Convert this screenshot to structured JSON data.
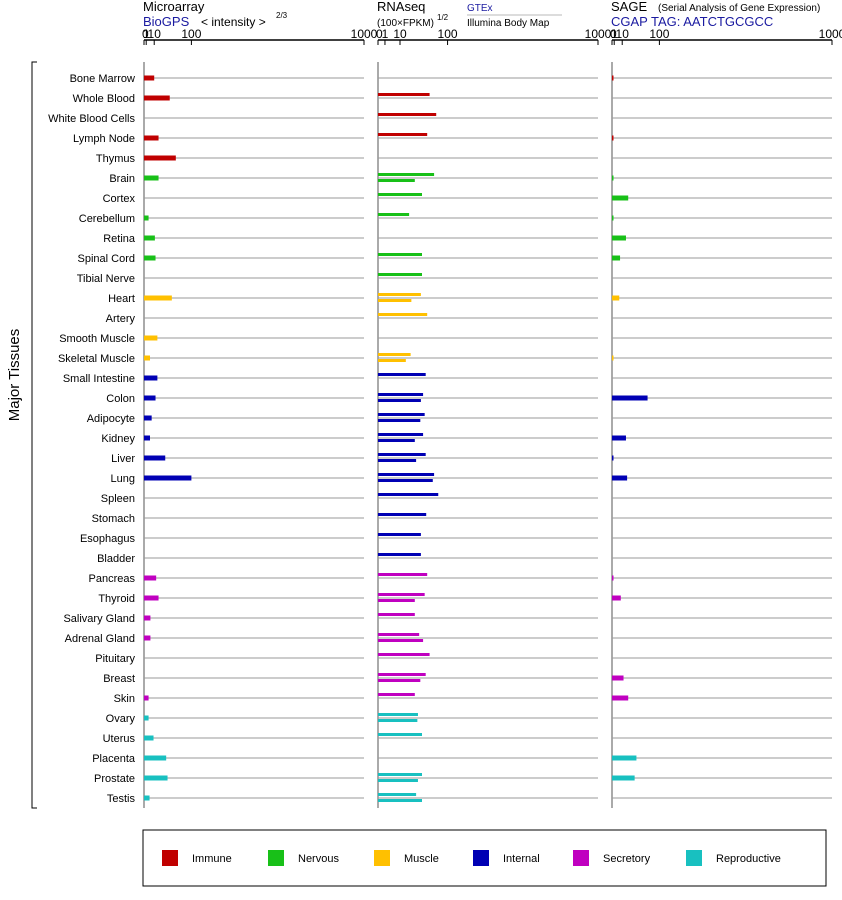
{
  "chart_data": {
    "type": "bar",
    "orientation": "horizontal",
    "scale": "power-transformed (x^(2/3)) expression axis",
    "axis_ticks": [
      "0",
      "1",
      "10",
      "100",
      "1000"
    ],
    "group_label": "Major Tissues",
    "colors": {
      "Immune": "#c00000",
      "Nervous": "#18c018",
      "Muscle": "#ffc000",
      "Internal": "#0000b4",
      "Secretory": "#c000c0",
      "Reproductive": "#18c0c0"
    },
    "panels": [
      {
        "key": "microarray",
        "title": "Microarray",
        "source": "BioGPS",
        "subtitle": "< intensity >",
        "exponent": "2/3"
      },
      {
        "key": "rnaseq",
        "title": "RNAseq",
        "subtitle": "(100×FPKM)",
        "exponent": "1/2",
        "source_top": "GTEx",
        "source_bottom": "Illumina Body Map"
      },
      {
        "key": "sage",
        "title": "SAGE",
        "subtitle": "(Serial Analysis of Gene Expression)",
        "source": "CGAP TAG: AATCTGCGCC"
      }
    ],
    "tissues": [
      {
        "name": "Bone Marrow",
        "group": "Immune",
        "microarray": 10,
        "rnaseq": [],
        "sage": 0.02
      },
      {
        "name": "Whole Blood",
        "group": "Immune",
        "microarray": 40,
        "rnaseq": [
          55
        ],
        "sage": null
      },
      {
        "name": "White Blood Cells",
        "group": "Immune",
        "microarray": null,
        "rnaseq": [
          70
        ],
        "sage": null
      },
      {
        "name": "Lymph Node",
        "group": "Immune",
        "microarray": 17,
        "rnaseq": [
          50
        ],
        "sage": 0.02
      },
      {
        "name": "Thymus",
        "group": "Immune",
        "microarray": 55,
        "rnaseq": [],
        "sage": null
      },
      {
        "name": "Brain",
        "group": "Nervous",
        "microarray": 17,
        "rnaseq": [
          65,
          28
        ],
        "sage": 0.02
      },
      {
        "name": "Cortex",
        "group": "Nervous",
        "microarray": null,
        "rnaseq": [
          40
        ],
        "sage": 20
      },
      {
        "name": "Cerebellum",
        "group": "Nervous",
        "microarray": 3,
        "rnaseq": [
          20
        ],
        "sage": 0.02
      },
      {
        "name": "Retina",
        "group": "Nervous",
        "microarray": 11,
        "rnaseq": [],
        "sage": 16
      },
      {
        "name": "Spinal Cord",
        "group": "Nervous",
        "microarray": 12,
        "rnaseq": [
          40
        ],
        "sage": 7
      },
      {
        "name": "Tibial Nerve",
        "group": "Nervous",
        "microarray": null,
        "rnaseq": [
          40
        ],
        "sage": null
      },
      {
        "name": "Heart",
        "group": "Muscle",
        "microarray": 45,
        "rnaseq": [
          38,
          23
        ],
        "sage": 6
      },
      {
        "name": "Artery",
        "group": "Muscle",
        "microarray": null,
        "rnaseq": [
          50
        ],
        "sage": null
      },
      {
        "name": "Smooth Muscle",
        "group": "Muscle",
        "microarray": 15,
        "rnaseq": [],
        "sage": null
      },
      {
        "name": "Skeletal Muscle",
        "group": "Muscle",
        "microarray": 4.5,
        "rnaseq": [
          22,
          16
        ],
        "sage": 0.02
      },
      {
        "name": "Small Intestine",
        "group": "Internal",
        "microarray": 15,
        "rnaseq": [
          47
        ],
        "sage": null
      },
      {
        "name": "Colon",
        "group": "Internal",
        "microarray": 12,
        "rnaseq": [
          42,
          38
        ],
        "sage": 65
      },
      {
        "name": "Adipocyte",
        "group": "Internal",
        "microarray": 6.5,
        "rnaseq": [
          45,
          37
        ],
        "sage": null
      },
      {
        "name": "Kidney",
        "group": "Internal",
        "microarray": 4.5,
        "rnaseq": [
          42,
          28
        ],
        "sage": 16
      },
      {
        "name": "Liver",
        "group": "Internal",
        "microarray": 30,
        "rnaseq": [
          47,
          30
        ],
        "sage": 0.02
      },
      {
        "name": "Lung",
        "group": "Internal",
        "microarray": 100,
        "rnaseq": [
          65,
          62
        ],
        "sage": 18
      },
      {
        "name": "Spleen",
        "group": "Internal",
        "microarray": null,
        "rnaseq": [
          75
        ],
        "sage": null
      },
      {
        "name": "Stomach",
        "group": "Internal",
        "microarray": null,
        "rnaseq": [
          48
        ],
        "sage": null
      },
      {
        "name": "Esophagus",
        "group": "Internal",
        "microarray": null,
        "rnaseq": [
          38
        ],
        "sage": null
      },
      {
        "name": "Bladder",
        "group": "Internal",
        "microarray": null,
        "rnaseq": [
          38
        ],
        "sage": null
      },
      {
        "name": "Pancreas",
        "group": "Secretory",
        "microarray": 13,
        "rnaseq": [
          50
        ],
        "sage": 0.02
      },
      {
        "name": "Thyroid",
        "group": "Secretory",
        "microarray": 17,
        "rnaseq": [
          45,
          28
        ],
        "sage": 8
      },
      {
        "name": "Salivary Gland",
        "group": "Secretory",
        "microarray": 5,
        "rnaseq": [
          28
        ],
        "sage": null
      },
      {
        "name": "Adrenal Gland",
        "group": "Secretory",
        "microarray": 5,
        "rnaseq": [
          35,
          42
        ],
        "sage": null
      },
      {
        "name": "Pituitary",
        "group": "Secretory",
        "microarray": null,
        "rnaseq": [
          55
        ],
        "sage": null
      },
      {
        "name": "Breast",
        "group": "Secretory",
        "microarray": null,
        "rnaseq": [
          47,
          37
        ],
        "sage": 12
      },
      {
        "name": "Skin",
        "group": "Secretory",
        "microarray": 3,
        "rnaseq": [
          28
        ],
        "sage": 20
      },
      {
        "name": "Ovary",
        "group": "Reproductive",
        "microarray": 3,
        "rnaseq": [
          33,
          32
        ],
        "sage": null
      },
      {
        "name": "Uterus",
        "group": "Reproductive",
        "microarray": 9,
        "rnaseq": [
          40
        ],
        "sage": null
      },
      {
        "name": "Placenta",
        "group": "Reproductive",
        "microarray": 32,
        "rnaseq": [],
        "sage": 37
      },
      {
        "name": "Prostate",
        "group": "Reproductive",
        "microarray": 35,
        "rnaseq": [
          40,
          33
        ],
        "sage": 33
      },
      {
        "name": "Testis",
        "group": "Reproductive",
        "microarray": 4,
        "rnaseq": [
          30,
          40
        ],
        "sage": null
      }
    ],
    "legend": [
      "Immune",
      "Nervous",
      "Muscle",
      "Internal",
      "Secretory",
      "Reproductive"
    ]
  }
}
